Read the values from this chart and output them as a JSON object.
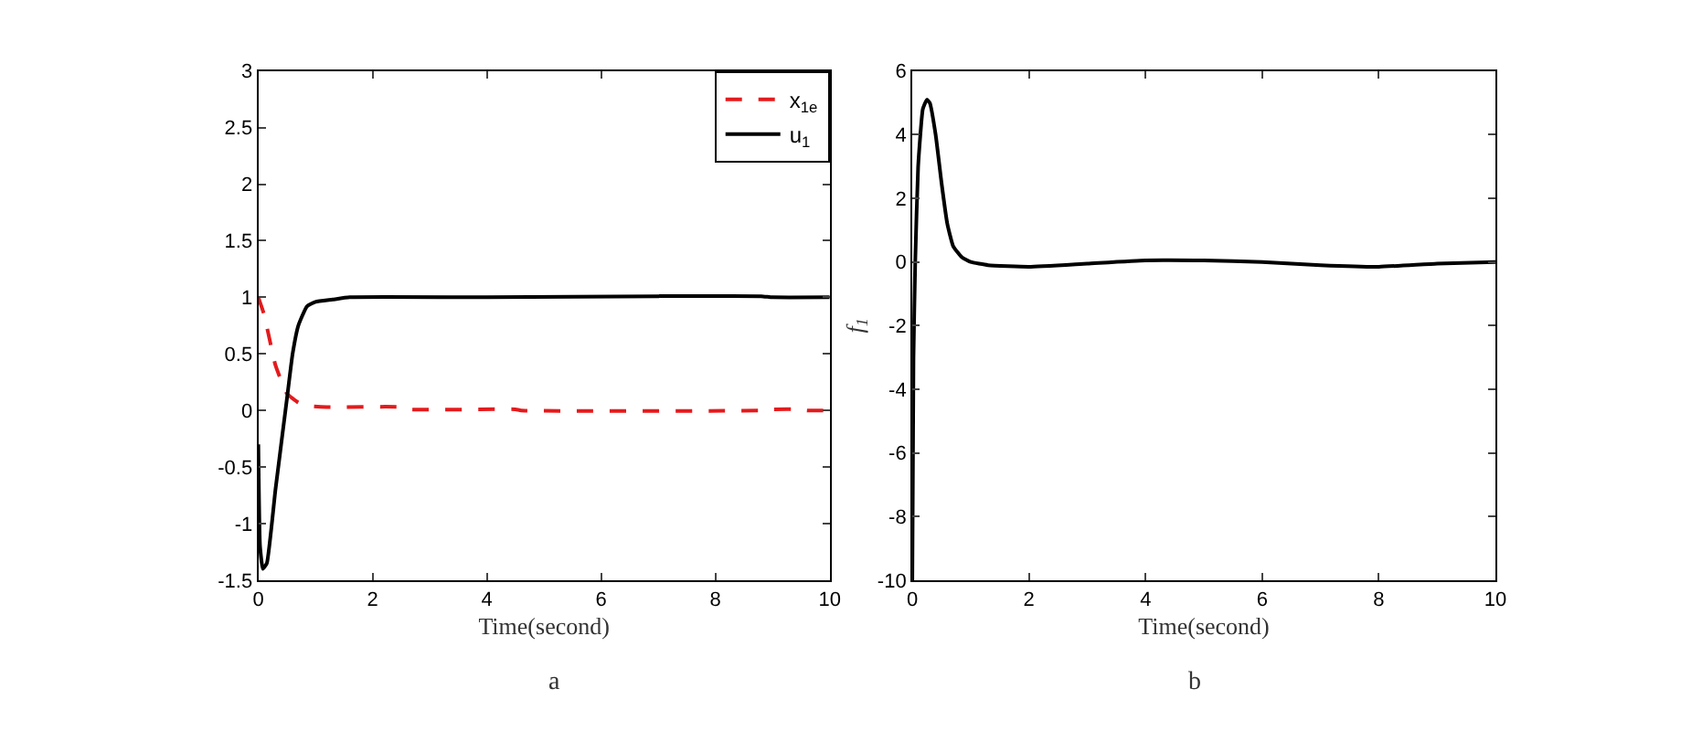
{
  "chart_data": [
    {
      "type": "line",
      "xlabel": "Time(second)",
      "annotations": [
        "a"
      ],
      "xlim": [
        0,
        10
      ],
      "xticks": [
        0,
        2,
        4,
        6,
        8,
        10
      ],
      "ylim": [
        -1.5,
        3
      ],
      "yticks": [
        -1.5,
        -1,
        -0.5,
        0,
        0.5,
        1,
        1.5,
        2,
        2.5,
        3
      ],
      "legend": "top right",
      "series": [
        {
          "name": "x$_{1e}$",
          "color": "#e41a1c",
          "line_style": "dashed",
          "x": [
            0,
            0.1,
            0.3,
            0.5,
            0.7,
            0.9,
            1.2,
            2.5,
            2.6,
            4.5,
            4.6,
            8.8,
            9,
            9.5,
            9.6,
            10
          ],
          "values": [
            1.0,
            0.85,
            0.4,
            0.15,
            0.07,
            0.04,
            0.03,
            0.03,
            0.01,
            0.01,
            0,
            0,
            0.01,
            0.01,
            0,
            0
          ]
        },
        {
          "name": "u$_{1}$",
          "color": "#000000",
          "line_style": "solid",
          "x": [
            0,
            0.03,
            0.08,
            0.15,
            0.3,
            0.5,
            0.6,
            0.7,
            0.85,
            1.0,
            1.3,
            1.6,
            4,
            7,
            8.8,
            9,
            10
          ],
          "values": [
            -0.3,
            -1.2,
            -1.4,
            -1.35,
            -0.7,
            0.1,
            0.5,
            0.75,
            0.92,
            0.96,
            0.98,
            1.0,
            1.0,
            1.01,
            1.01,
            1.0,
            1.0
          ]
        }
      ]
    },
    {
      "type": "line",
      "xlabel": "Time(second)",
      "ylabel": "f$_{1}$",
      "annotations": [
        "b"
      ],
      "xlim": [
        0,
        10
      ],
      "xticks": [
        0,
        2,
        4,
        6,
        8,
        10
      ],
      "ylim": [
        -10,
        6
      ],
      "yticks": [
        -10,
        -8,
        -6,
        -4,
        -2,
        0,
        2,
        4,
        6
      ],
      "series": [
        {
          "color": "#000000",
          "line_style": "solid",
          "x": [
            0,
            0.02,
            0.05,
            0.1,
            0.18,
            0.25,
            0.3,
            0.4,
            0.5,
            0.6,
            0.7,
            0.85,
            1.0,
            1.3,
            2,
            3,
            4,
            5,
            6,
            7,
            8,
            9,
            10
          ],
          "values": [
            -10,
            -3,
            0,
            3,
            4.8,
            5.1,
            5.0,
            4.0,
            2.5,
            1.2,
            0.5,
            0.15,
            0,
            -0.1,
            -0.15,
            -0.05,
            0.05,
            0.05,
            0,
            -0.1,
            -0.15,
            -0.05,
            0
          ]
        }
      ]
    }
  ]
}
